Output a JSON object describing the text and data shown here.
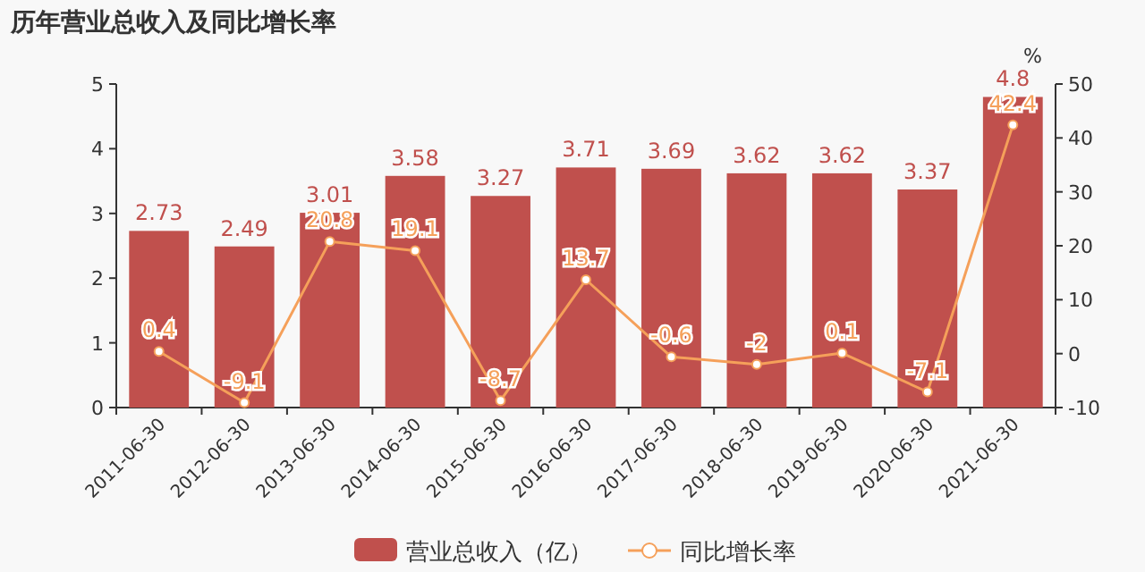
{
  "chart_data": {
    "type": "bar",
    "title": "历年营业总收入及同比增长率",
    "categories": [
      "2011-06-30",
      "2012-06-30",
      "2013-06-30",
      "2014-06-30",
      "2015-06-30",
      "2016-06-30",
      "2017-06-30",
      "2018-06-30",
      "2019-06-30",
      "2020-06-30",
      "2021-06-30"
    ],
    "series": [
      {
        "name": "营业总收入（亿）",
        "color": "#c0504d",
        "values": [
          2.73,
          2.49,
          3.01,
          3.58,
          3.27,
          3.71,
          3.69,
          3.62,
          3.62,
          3.37,
          4.8
        ]
      },
      {
        "name": "同比增长率",
        "type": "line",
        "axis": "y2",
        "color": "#f5a05a",
        "marker": "circle",
        "values": [
          0.4,
          -9.1,
          20.8,
          19.1,
          -8.7,
          13.7,
          -0.6,
          -2,
          0.1,
          -7.1,
          42.4
        ]
      }
    ],
    "ylim": [
      0,
      5
    ],
    "yticks": [
      0,
      1,
      2,
      3,
      4,
      5
    ],
    "y2label": "%",
    "y2lim": [
      -10,
      50
    ],
    "y2ticks": [
      -10,
      0,
      10,
      20,
      30,
      40,
      50
    ],
    "data_labels": true,
    "legend": "bottom",
    "grid": false
  }
}
